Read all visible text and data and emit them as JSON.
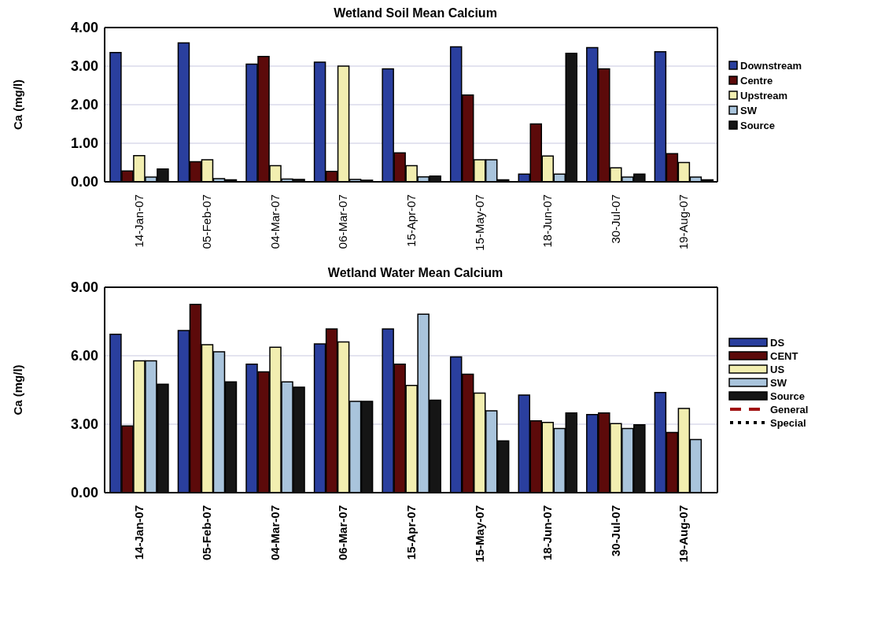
{
  "chart_data": [
    {
      "type": "bar",
      "title": "Wetland Soil Mean Calcium",
      "ylabel": "Ca (mg/l)",
      "categories": [
        "14-Jan-07",
        "05-Feb-07",
        "04-Mar-07",
        "06-Mar-07",
        "15-Apr-07",
        "15-May-07",
        "18-Jun-07",
        "30-Jul-07",
        "19-Aug-07"
      ],
      "series": [
        {
          "name": "Downstream",
          "color": "#2a3f9e",
          "values": [
            3.35,
            3.6,
            3.05,
            3.1,
            2.93,
            3.5,
            0.2,
            3.48,
            3.37
          ]
        },
        {
          "name": "Centre",
          "color": "#5c0a0a",
          "values": [
            0.28,
            0.52,
            3.25,
            0.27,
            0.75,
            2.25,
            1.5,
            2.93,
            0.73
          ]
        },
        {
          "name": "Upstream",
          "color": "#f2eeb0",
          "values": [
            0.68,
            0.57,
            0.42,
            3.0,
            0.42,
            0.57,
            0.67,
            0.36,
            0.5
          ]
        },
        {
          "name": "SW",
          "color": "#a9c4dc",
          "values": [
            0.12,
            0.08,
            0.07,
            0.06,
            0.13,
            0.57,
            0.2,
            0.12,
            0.12
          ]
        },
        {
          "name": "Source",
          "color": "#151515",
          "values": [
            0.33,
            0.05,
            0.06,
            0.04,
            0.15,
            0.05,
            3.33,
            0.2,
            0.05
          ]
        }
      ],
      "ylim": [
        0,
        4
      ],
      "yticks": [
        {
          "value": 0,
          "label": "0.00"
        },
        {
          "value": 1,
          "label": "1.00"
        },
        {
          "value": 2,
          "label": "2.00"
        },
        {
          "value": 3,
          "label": "3.00"
        },
        {
          "value": 4,
          "label": "4.00"
        }
      ],
      "grid": "y",
      "legend": "right"
    },
    {
      "type": "bar",
      "title": "Wetland Water Mean Calcium",
      "ylabel": "Ca (mg/l)",
      "categories": [
        "14-Jan-07",
        "05-Feb-07",
        "04-Mar-07",
        "06-Mar-07",
        "15-Apr-07",
        "15-May-07",
        "18-Jun-07",
        "30-Jul-07",
        "19-Aug-07"
      ],
      "series": [
        {
          "name": "DS",
          "color": "#2a3f9e",
          "values": [
            6.94,
            7.1,
            5.63,
            6.52,
            7.17,
            5.95,
            4.28,
            3.42,
            4.39
          ]
        },
        {
          "name": "CENT",
          "color": "#5c0a0a",
          "values": [
            2.92,
            8.25,
            5.29,
            7.17,
            5.63,
            5.19,
            3.15,
            3.49,
            2.64
          ]
        },
        {
          "name": "US",
          "color": "#f2eeb0",
          "values": [
            5.78,
            6.48,
            6.37,
            6.6,
            4.7,
            4.36,
            3.08,
            3.03,
            3.69
          ]
        },
        {
          "name": "SW",
          "color": "#a9c4dc",
          "values": [
            5.78,
            6.17,
            4.85,
            4.0,
            7.82,
            3.59,
            2.81,
            2.81,
            2.33
          ]
        },
        {
          "name": "Source",
          "color": "#151515",
          "values": [
            4.75,
            4.85,
            4.62,
            4.0,
            4.05,
            2.27,
            3.49,
            2.97,
            null
          ]
        },
        {
          "name": "General",
          "type": "line",
          "color": "#a01010",
          "line_style": "dashed",
          "values": [
            null,
            null,
            null,
            null,
            null,
            null,
            null,
            null,
            null
          ]
        },
        {
          "name": "Special",
          "type": "line",
          "color": "#000000",
          "line_style": "dotted",
          "values": [
            null,
            null,
            null,
            null,
            null,
            null,
            null,
            null,
            null
          ]
        }
      ],
      "ylim": [
        0,
        9
      ],
      "yticks": [
        {
          "value": 0,
          "label": "0.00"
        },
        {
          "value": 3,
          "label": "3.00"
        },
        {
          "value": 6,
          "label": "6.00"
        },
        {
          "value": 9,
          "label": "9.00"
        }
      ],
      "grid": "y",
      "legend": "right"
    }
  ]
}
